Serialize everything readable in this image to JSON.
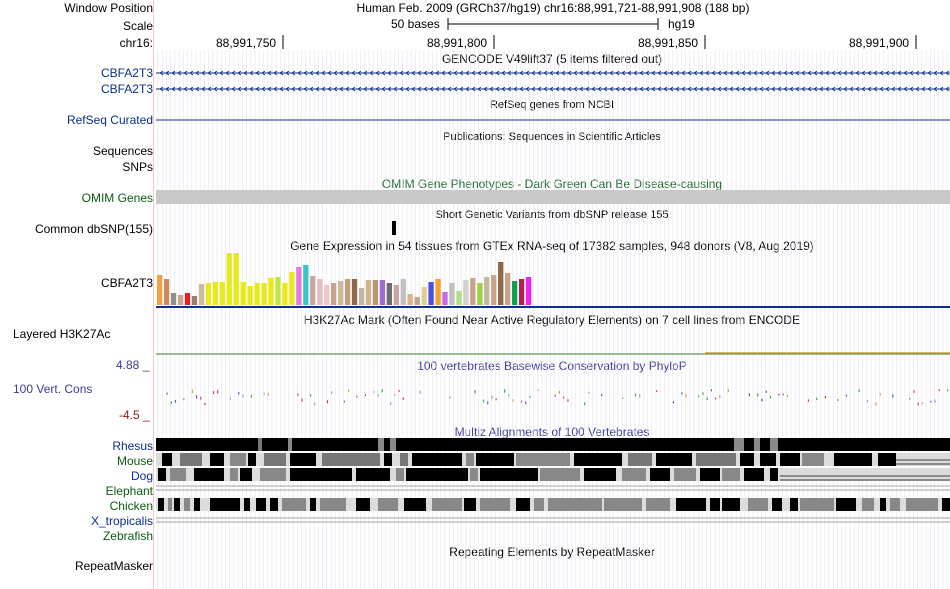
{
  "colors": {
    "label_blue": "#0c2e8c",
    "label_green": "#0b5a12",
    "label_red": "#8a1a1a",
    "title_green": "#1c6a28",
    "title_purple": "#3a3a98",
    "ruler": "#000000",
    "grid": "#dadae6"
  },
  "header": {
    "window_position_label": "Window Position",
    "window_position_value": "Human Feb. 2009 (GRCh37/hg19)   chr16:88,991,721-88,991,908 (188 bp)",
    "scale_label": "Scale",
    "scale_bar_text": "50 bases",
    "scale_assembly": "hg19",
    "chrom_label": "chr16:",
    "ticks": [
      "88,991,750",
      "88,991,800",
      "88,991,850",
      "88,991,900"
    ]
  },
  "tracks": {
    "gencode": {
      "title": "GENCODE V49lift37 (5 items filtered out)",
      "items": [
        "CBFA2T3",
        "CBFA2T3"
      ]
    },
    "refseq": {
      "title": "RefSeq genes from NCBI",
      "label": "RefSeq Curated"
    },
    "publications": {
      "title": "Publications: Sequences in Scientific Articles",
      "labels": [
        "Sequences",
        "SNPs"
      ]
    },
    "omim": {
      "title": "OMIM Gene Phenotypes - Dark Green Can Be Disease-causing",
      "label": "OMIM Genes"
    },
    "dbsnp": {
      "title": "Short Genetic Variants from dbSNP release 155",
      "label": "Common dbSNP(155)"
    },
    "gtex": {
      "title": "Gene Expression in 54 tissues from GTEx RNA-seq of 17382 samples, 948 donors (V8, Aug 2019)",
      "label": "CBFA2T3"
    },
    "h3k27ac": {
      "title": "H3K27Ac Mark (Often Found Near Active Regulatory Elements) on 7 cell lines from ENCODE",
      "label": "Layered H3K27Ac"
    },
    "phylop": {
      "title": "100 vertebrates Basewise Conservation by PhyloP",
      "label": "100 Vert. Cons",
      "max": "4.88 _",
      "min": "-4.5 _"
    },
    "multiz": {
      "title": "Multiz Alignments of 100 Vertebrates",
      "species": [
        {
          "name": "Rhesus",
          "color": "#0c2e8c"
        },
        {
          "name": "Mouse",
          "color": "#0b5a12"
        },
        {
          "name": "Dog",
          "color": "#0c2e8c"
        },
        {
          "name": "Elephant",
          "color": "#0b5a12"
        },
        {
          "name": "Chicken",
          "color": "#0b5a12"
        },
        {
          "name": "X_tropicalis",
          "color": "#0c2e8c"
        },
        {
          "name": "Zebrafish",
          "color": "#0b5a12"
        }
      ]
    },
    "repeatmasker": {
      "title": "Repeating Elements by RepeatMasker",
      "label": "RepeatMasker"
    }
  },
  "gtex_bars": {
    "values": [
      30,
      26,
      12,
      10,
      12,
      9,
      21,
      22,
      23,
      23,
      52,
      52,
      23,
      19,
      22,
      22,
      27,
      28,
      22,
      33,
      38,
      40,
      29,
      26,
      20,
      22,
      24,
      26,
      26,
      17,
      25,
      25,
      25,
      22,
      20,
      26,
      11,
      8,
      18,
      23,
      26,
      13,
      22,
      14,
      25,
      27,
      22,
      28,
      30,
      43,
      32,
      24,
      26,
      28
    ],
    "colors": [
      "#f2a040",
      "#c68b5a",
      "#8f8f8f",
      "#c9a38c",
      "#e42020",
      "#9c7a6c",
      "#cdb8a0",
      "#e8e81a",
      "#e8e81a",
      "#e8e81a",
      "#e8e81a",
      "#e8e81a",
      "#e8e81a",
      "#e8e81a",
      "#e8e81a",
      "#e8e81a",
      "#e8e81a",
      "#c0e840",
      "#e8e81a",
      "#e8e81a",
      "#e27ae8",
      "#36c8c8",
      "#caa4a0",
      "#e0c0c0",
      "#f0c6c6",
      "#c9a38c",
      "#cdb8a0",
      "#c3a078",
      "#8a6a4a",
      "#c0b6a6",
      "#d2b48c",
      "#b89470",
      "#a06acc",
      "#6c6c6c",
      "#caa4a0",
      "#c0c0c0",
      "#d8b880",
      "#c9a38c",
      "#e0d090",
      "#5050e0",
      "#f8a030",
      "#c868e8",
      "#c0c0c0",
      "#b0e080",
      "#d0d0d0",
      "#c9a38c",
      "#a0d040",
      "#c2b8a0",
      "#c9a38c",
      "#8c6a48",
      "#c9a38c",
      "#10a050",
      "#b02050",
      "#f020f0"
    ]
  }
}
